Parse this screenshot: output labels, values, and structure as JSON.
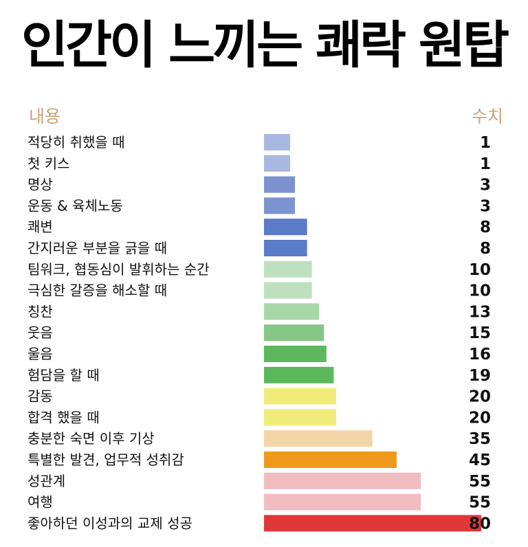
{
  "title": "인간이 느끼는 쾌락 원탑",
  "headers": {
    "left": "내용",
    "right": "수치"
  },
  "chart_data": {
    "type": "bar",
    "orientation": "horizontal",
    "xlim": [
      0,
      80
    ],
    "categories": [
      "적당히 취했을 때",
      "첫 키스",
      "명상",
      "운동 & 육체노동",
      "쾌변",
      "간지러운 부분을 긁을 때",
      "팀워크, 협동심이 발휘하는 순간",
      "극심한 갈증을 해소할 때",
      "칭찬",
      "웃음",
      "울음",
      "험담을 할 때",
      "감동",
      "합격 했을 때",
      "충분한 숙면 이후 기상",
      "특별한 발견, 업무적 성취감",
      "성관계",
      "여행",
      "좋아하던 이성과의 교제 성공"
    ],
    "values": [
      1,
      1,
      3,
      3,
      8,
      8,
      10,
      10,
      13,
      15,
      16,
      19,
      20,
      20,
      35,
      45,
      55,
      55,
      80
    ],
    "value_labels": [
      "1",
      "1",
      "3",
      "3",
      "8",
      "8",
      "10",
      "10",
      "13",
      "15",
      "16",
      "19",
      "20",
      "20",
      "35",
      "45",
      "55",
      "55",
      "80"
    ],
    "colors": [
      "#a8b8e0",
      "#a8b8e0",
      "#7c93d0",
      "#7c93d0",
      "#5a7bc8",
      "#5a7bc8",
      "#bfe0bf",
      "#bfe0bf",
      "#a9d6a9",
      "#86c686",
      "#5db85d",
      "#5db85d",
      "#f0ec7a",
      "#f0ec7a",
      "#f3d6a8",
      "#ef9a1a",
      "#f2bcc0",
      "#f2bcc0",
      "#e03838"
    ]
  }
}
